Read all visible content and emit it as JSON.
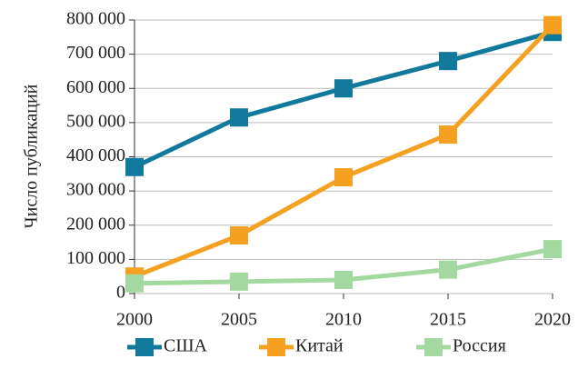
{
  "chart_data": {
    "type": "line",
    "y_label": "Число публикаций",
    "x": [
      2000,
      2005,
      2010,
      2015,
      2020
    ],
    "xlim": [
      2000,
      2020
    ],
    "xticks": [
      2000,
      2005,
      2010,
      2015,
      2020
    ],
    "ylim": [
      0,
      800000
    ],
    "yticks": [
      {
        "value": 0,
        "label": "0"
      },
      {
        "value": 100000,
        "label": "100 000"
      },
      {
        "value": 200000,
        "label": "200 000"
      },
      {
        "value": 300000,
        "label": "300 000"
      },
      {
        "value": 400000,
        "label": "400 000"
      },
      {
        "value": 500000,
        "label": "500 000"
      },
      {
        "value": 600000,
        "label": "600 000"
      },
      {
        "value": 700000,
        "label": "700 000"
      },
      {
        "value": 800000,
        "label": "800 000"
      }
    ],
    "grid": true,
    "legend": "bottom",
    "series": [
      {
        "name": "США",
        "color": "#11799b",
        "values": [
          370000,
          515000,
          600000,
          680000,
          765000
        ]
      },
      {
        "name": "Китай",
        "color": "#f5a021",
        "values": [
          50000,
          170000,
          340000,
          465000,
          785000
        ]
      },
      {
        "name": "Россия",
        "color": "#a3d9a0",
        "values": [
          30000,
          35000,
          40000,
          70000,
          130000
        ]
      }
    ]
  }
}
